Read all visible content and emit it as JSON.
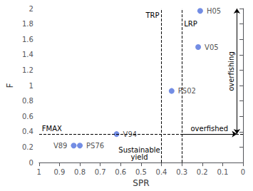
{
  "chart_data": {
    "type": "scatter",
    "xlabel": "SPR",
    "ylabel": "F",
    "x": [
      0.21,
      0.22,
      0.35,
      0.62,
      0.8,
      0.83
    ],
    "values": [
      1.97,
      1.5,
      0.93,
      0.37,
      0.22,
      0.22
    ],
    "labels": [
      "H05",
      "V05",
      "PS02",
      "V94",
      "PS76",
      "V89"
    ],
    "xlim": [
      1.0,
      0.0
    ],
    "ylim": [
      0.0,
      2.0
    ],
    "xticks": [
      1,
      0.9,
      0.8,
      0.7,
      0.6,
      0.5,
      0.4,
      0.3,
      0.2,
      0.1,
      0
    ],
    "yticks": [
      0,
      0.2,
      0.4,
      0.6,
      0.8,
      1,
      1.2,
      1.4,
      1.6,
      1.8,
      2
    ],
    "grid": false,
    "reference_lines": [
      {
        "axis": "y",
        "value": 0.37,
        "label": "FMAX"
      },
      {
        "axis": "x",
        "value": 0.4,
        "label": "TRP"
      },
      {
        "axis": "x",
        "value": 0.3,
        "label": "LRP"
      }
    ],
    "annotations": {
      "sustainable_yield": "Sustainable\nyield",
      "overfishing": "overfishing",
      "overfished": "overfished"
    }
  }
}
